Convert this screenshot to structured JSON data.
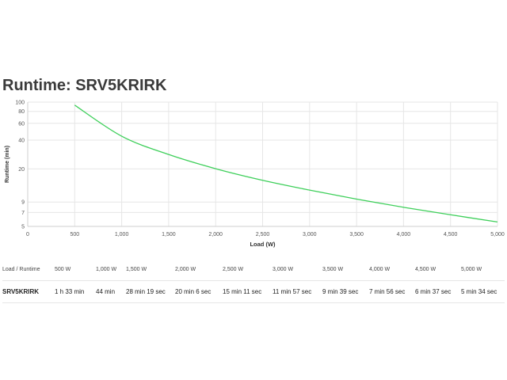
{
  "title": "Runtime: SRV5KRIRK",
  "chart_data": {
    "type": "line",
    "xlabel": "Load (W)",
    "ylabel": "Runtime (min)",
    "xlim": [
      0,
      5000
    ],
    "ylim": [
      5,
      100
    ],
    "yscale": "log",
    "grid": true,
    "x_ticks": [
      "0",
      "500",
      "1,000",
      "1,500",
      "2,000",
      "2,500",
      "3,000",
      "3,500",
      "4,000",
      "4,500",
      "5,000"
    ],
    "y_ticks": [
      "5",
      "7",
      "9",
      "20",
      "40",
      "60",
      "80",
      "100"
    ],
    "series": [
      {
        "color": "#3ecf5a",
        "x": [
          500,
          1000,
          1500,
          2000,
          2500,
          3000,
          3500,
          4000,
          4500,
          5000
        ],
        "y": [
          93,
          44,
          28.3,
          20.1,
          15.2,
          12,
          9.65,
          7.93,
          6.62,
          5.57
        ]
      }
    ]
  },
  "table": {
    "header_label": "Load / Runtime",
    "loads": [
      "500 W",
      "1,000 W",
      "1,500 W",
      "2,000 W",
      "2,500 W",
      "3,000 W",
      "3,500 W",
      "4,000 W",
      "4,500 W",
      "5,000 W"
    ],
    "rows": [
      {
        "model": "SRV5KRIRK",
        "runtimes": [
          "1 h 33 min",
          "44 min",
          "28 min 19 sec",
          "20 min 6 sec",
          "15 min 11 sec",
          "11 min 57 sec",
          "9 min 39 sec",
          "7 min 56 sec",
          "6 min 37 sec",
          "5 min 34 sec"
        ]
      }
    ]
  }
}
